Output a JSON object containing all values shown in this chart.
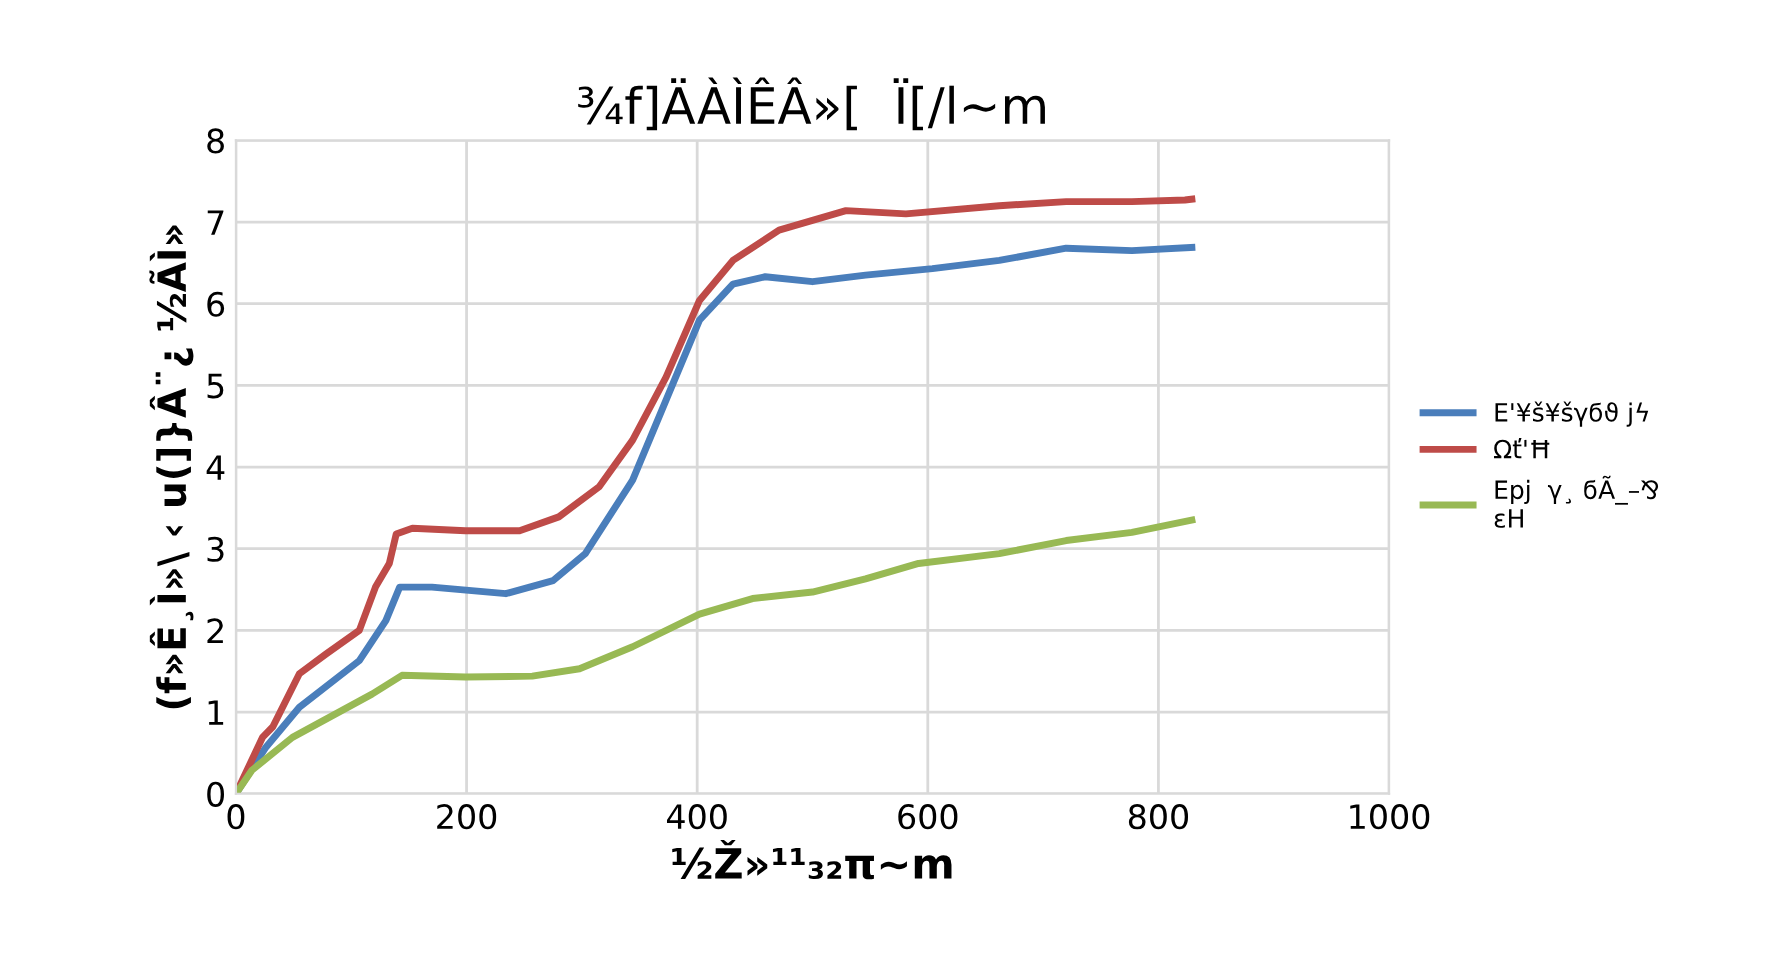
{
  "chart_data": {
    "type": "line",
    "title": "¾f]ÄÀÌÊÂ»[  Ï[/l~m",
    "xlabel": "½Ž»¹¹₃₂π~m",
    "ylabel": "(f»Ê¸Ì»\\ ‹ u(]}Â¨¿ ½ÃÌ»",
    "xlim": [
      0,
      1000
    ],
    "xticks": [
      0,
      200,
      400,
      600,
      800,
      1000
    ],
    "ylim": [
      0,
      8
    ],
    "yticks": [
      0,
      1,
      2,
      3,
      4,
      5,
      6,
      7,
      8
    ],
    "grid": true,
    "legend": "right",
    "marker": "none",
    "line_style": "solid",
    "series": [
      {
        "name": "E'¥š¥šγϭϑ jϟ",
        "color": "#4a7ebb",
        "x": [
          0,
          26,
          55,
          107,
          130,
          142,
          170,
          234,
          275,
          303,
          344,
          373,
          402,
          431,
          459,
          500,
          546,
          604,
          662,
          720,
          777,
          829
        ],
        "values": [
          0,
          0.57,
          1.06,
          1.63,
          2.12,
          2.53,
          2.53,
          2.45,
          2.61,
          2.94,
          3.84,
          4.82,
          5.8,
          6.24,
          6.33,
          6.27,
          6.35,
          6.43,
          6.53,
          6.68,
          6.65,
          6.69
        ]
      },
      {
        "name": "Ωť'Ħ",
        "color": "#be4b48",
        "x": [
          0,
          23,
          32,
          55,
          78,
          107,
          121,
          133,
          139,
          153,
          199,
          246,
          280,
          315,
          344,
          373,
          402,
          431,
          471,
          529,
          581,
          662,
          720,
          777,
          823,
          829
        ],
        "values": [
          0,
          0.69,
          0.82,
          1.47,
          1.71,
          2.0,
          2.53,
          2.82,
          3.18,
          3.25,
          3.22,
          3.22,
          3.39,
          3.76,
          4.33,
          5.1,
          6.04,
          6.53,
          6.9,
          7.14,
          7.1,
          7.2,
          7.25,
          7.25,
          7.27,
          7.28
        ]
      },
      {
        "name": "Epj  γ¸ ϭÃ_–⅋\nεH",
        "color": "#98b954",
        "x": [
          0,
          14,
          49,
          118,
          144,
          199,
          257,
          298,
          344,
          402,
          448,
          500,
          546,
          592,
          662,
          720,
          777,
          829
        ],
        "values": [
          0,
          0.29,
          0.69,
          1.22,
          1.45,
          1.43,
          1.44,
          1.53,
          1.8,
          2.2,
          2.39,
          2.47,
          2.63,
          2.82,
          2.94,
          3.1,
          3.2,
          3.35
        ]
      }
    ]
  }
}
